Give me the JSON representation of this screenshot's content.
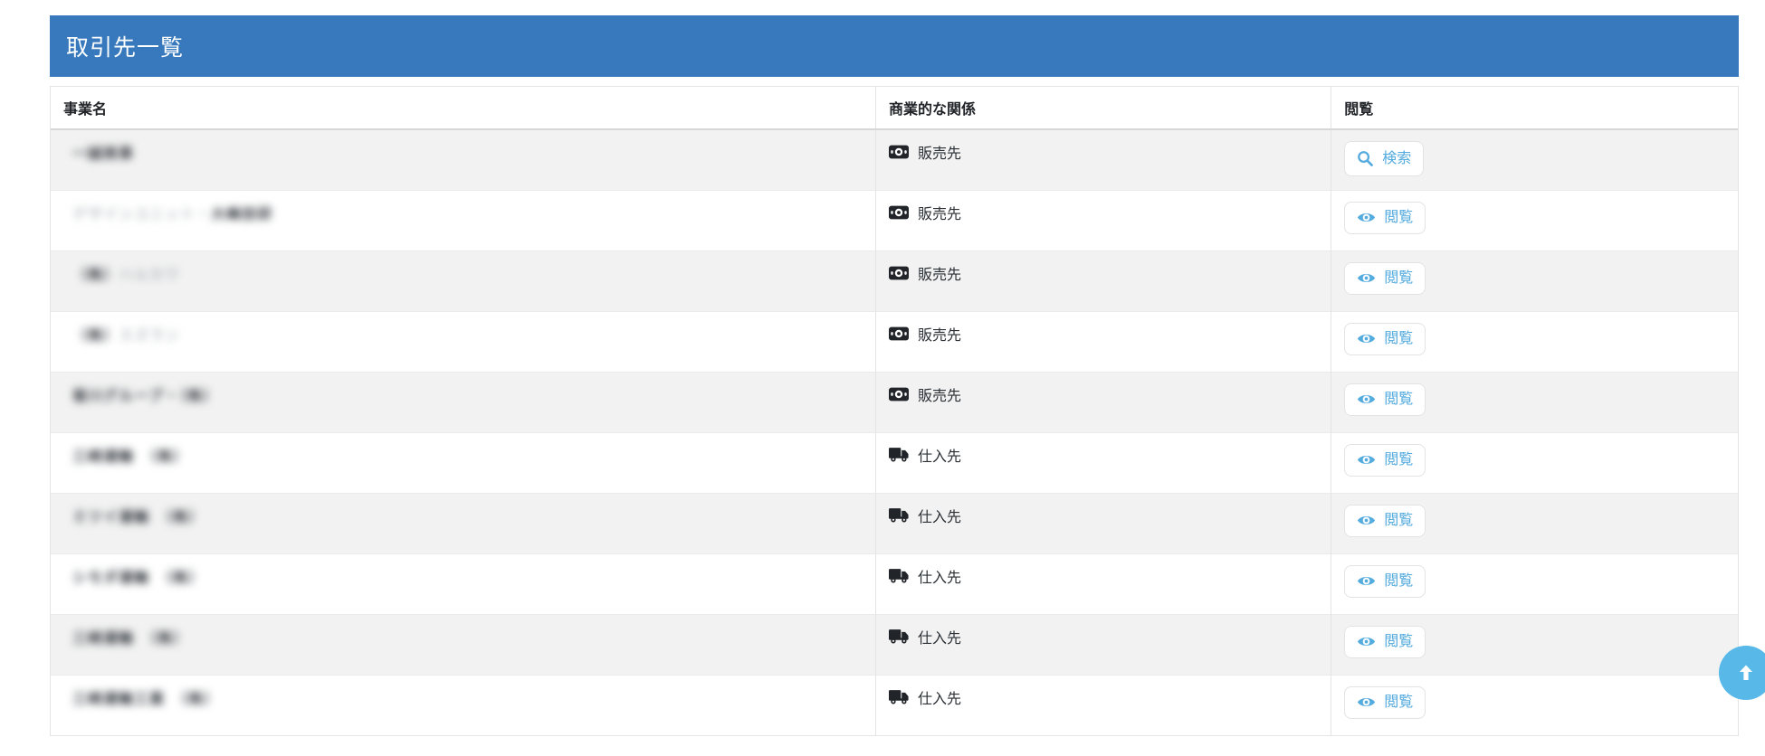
{
  "panel": {
    "title": "取引先一覧"
  },
  "table": {
    "columns": [
      {
        "key": "name",
        "label": "事業名"
      },
      {
        "key": "relation",
        "label": "商業的な関係"
      },
      {
        "key": "view",
        "label": "閲覧"
      }
    ],
    "rows": [
      {
        "name_segments": [
          {
            "text": "一誠商事",
            "tone": "dark"
          }
        ],
        "relation": "販売先",
        "relation_icon": "money-bill-icon",
        "action": {
          "label": "検索",
          "icon": "search-icon"
        }
      },
      {
        "name_segments": [
          {
            "text": "デザインユニット・",
            "tone": "light"
          },
          {
            "text": "大峰技研",
            "tone": "dark"
          }
        ],
        "relation": "販売先",
        "relation_icon": "money-bill-icon",
        "action": {
          "label": "閲覧",
          "icon": "eye-icon"
        }
      },
      {
        "name_segments": [
          {
            "text": "（株）",
            "tone": "dark"
          },
          {
            "text": "ハルカワ",
            "tone": "light"
          }
        ],
        "relation": "販売先",
        "relation_icon": "money-bill-icon",
        "action": {
          "label": "閲覧",
          "icon": "eye-icon"
        }
      },
      {
        "name_segments": [
          {
            "text": "（株）",
            "tone": "dark"
          },
          {
            "text": "スズラン",
            "tone": "light"
          }
        ],
        "relation": "販売先",
        "relation_icon": "money-bill-icon",
        "action": {
          "label": "閲覧",
          "icon": "eye-icon"
        }
      },
      {
        "name_segments": [
          {
            "text": "菊川グループ・（株）",
            "tone": "dark"
          }
        ],
        "relation": "販売先",
        "relation_icon": "money-bill-icon",
        "action": {
          "label": "閲覧",
          "icon": "eye-icon"
        }
      },
      {
        "name_segments": [
          {
            "text": "三崎運輸　（株）",
            "tone": "dark"
          }
        ],
        "relation": "仕入先",
        "relation_icon": "truck-icon",
        "action": {
          "label": "閲覧",
          "icon": "eye-icon"
        }
      },
      {
        "name_segments": [
          {
            "text": "ミツイ運輸　（株）",
            "tone": "dark"
          }
        ],
        "relation": "仕入先",
        "relation_icon": "truck-icon",
        "action": {
          "label": "閲覧",
          "icon": "eye-icon"
        }
      },
      {
        "name_segments": [
          {
            "text": "シモダ運輸　（株）",
            "tone": "dark"
          }
        ],
        "relation": "仕入先",
        "relation_icon": "truck-icon",
        "action": {
          "label": "閲覧",
          "icon": "eye-icon"
        }
      },
      {
        "name_segments": [
          {
            "text": "三崎運輸　（株）",
            "tone": "dark"
          }
        ],
        "relation": "仕入先",
        "relation_icon": "truck-icon",
        "action": {
          "label": "閲覧",
          "icon": "eye-icon"
        }
      },
      {
        "name_segments": [
          {
            "text": "三崎運輸工業　（株）",
            "tone": "dark"
          }
        ],
        "relation": "仕入先",
        "relation_icon": "truck-icon",
        "action": {
          "label": "閲覧",
          "icon": "eye-icon"
        }
      }
    ]
  },
  "floating": {
    "scroll_top_icon": "arrow-up-icon"
  },
  "colors": {
    "header_bar": "#3779bc",
    "button_blue": "#54abde",
    "float_button": "#58b9e8",
    "stripe": "#f2f2f2"
  }
}
